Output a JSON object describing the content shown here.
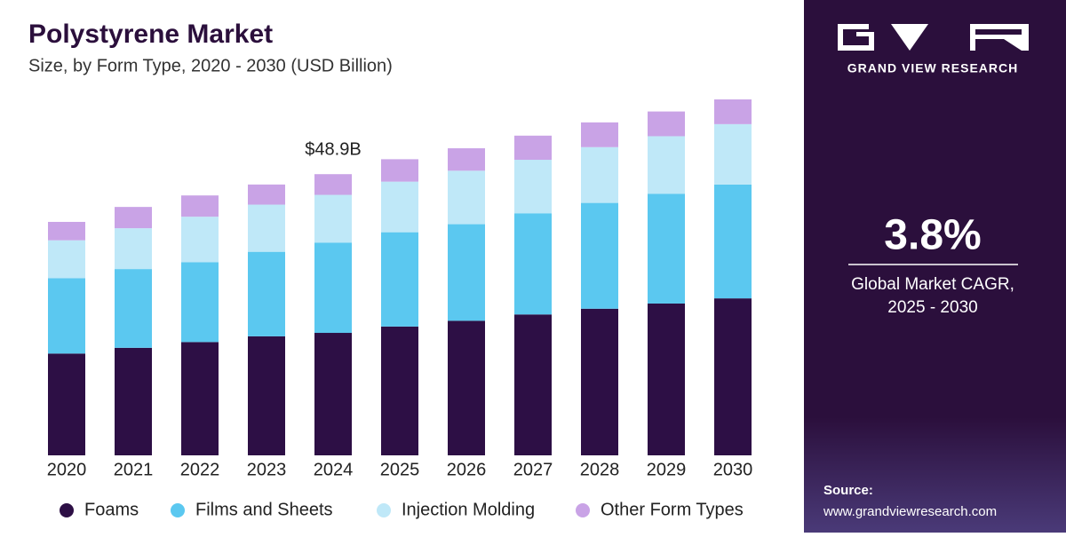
{
  "chart_data": {
    "type": "stacked-bar",
    "title": "Polystyrene Market",
    "subtitle": "Size, by Form Type, 2020 - 2030 (USD Billion)",
    "categories": [
      "2020",
      "2021",
      "2022",
      "2023",
      "2024",
      "2025",
      "2026",
      "2027",
      "2028",
      "2029",
      "2030"
    ],
    "series": [
      {
        "name": "Foams",
        "color": "#2d0f45",
        "values": [
          17.7,
          18.7,
          19.7,
          20.7,
          21.3,
          22.4,
          23.4,
          24.5,
          25.5,
          26.4,
          27.3
        ]
      },
      {
        "name": "Films and Sheets",
        "color": "#5bc8f0",
        "values": [
          13.1,
          13.7,
          13.9,
          14.7,
          15.7,
          16.4,
          16.8,
          17.6,
          18.4,
          19.1,
          19.8
        ]
      },
      {
        "name": "Injection Molding",
        "color": "#bfe8f8",
        "values": [
          6.6,
          7.1,
          7.9,
          8.2,
          8.3,
          8.8,
          9.3,
          9.3,
          9.7,
          10.0,
          10.5
        ]
      },
      {
        "name": "Other Form Types",
        "color": "#c9a3e6",
        "values": [
          3.2,
          3.7,
          3.7,
          3.5,
          3.6,
          3.9,
          3.9,
          4.2,
          4.3,
          4.3,
          4.3
        ]
      }
    ],
    "annotations": [
      {
        "text": "$48.9B",
        "x": "2024"
      }
    ],
    "legend": "bottom"
  },
  "sidebar": {
    "brand": "GRAND VIEW RESEARCH",
    "cagr": "3.8%",
    "cagr_label": [
      "Global Market CAGR,",
      "2025 - 2030"
    ],
    "source_label": "Source:",
    "source_url": "www.grandviewresearch.com"
  }
}
